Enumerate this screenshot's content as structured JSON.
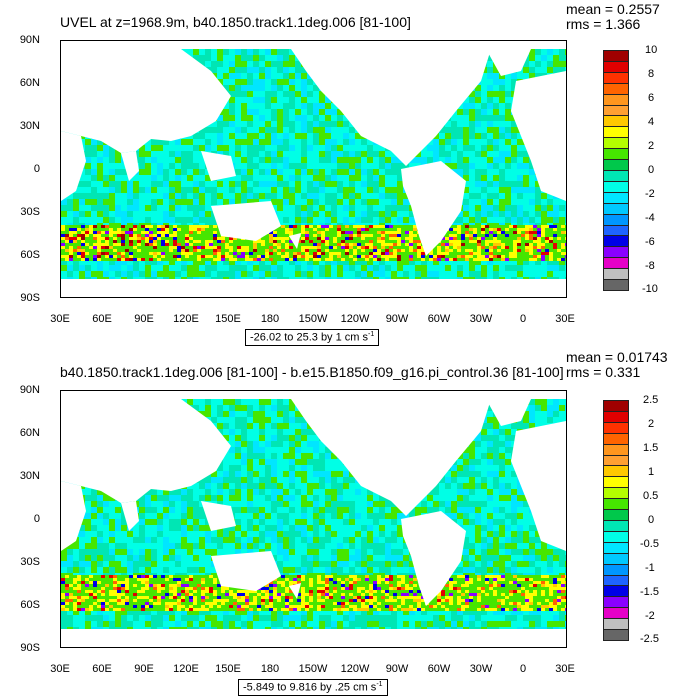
{
  "colors": {
    "palette": [
      "#666666",
      "#bfbfbf",
      "#e600c8",
      "#8a00ff",
      "#0000e6",
      "#1e64ff",
      "#0096ff",
      "#00c8ff",
      "#00e6ff",
      "#00ffe6",
      "#00e6b4",
      "#00c84b",
      "#46e600",
      "#b4ff00",
      "#ffff00",
      "#ffc800",
      "#ffa032",
      "#ff961e",
      "#ff6400",
      "#ff3200",
      "#e10000",
      "#a00000"
    ],
    "land": "#ffffff"
  },
  "panels": [
    {
      "title": "UVEL at z=1968.9m, b40.1850.track1.1deg.006 [81-100]",
      "mean": "mean = 0.2557",
      "rms": "rms = 1.366",
      "yticks": [
        "90N",
        "60N",
        "30N",
        "0",
        "30S",
        "60S",
        "90S"
      ],
      "xticks": [
        "30E",
        "60E",
        "90E",
        "120E",
        "150E",
        "180",
        "150W",
        "120W",
        "90W",
        "60W",
        "30W",
        "0",
        "30E"
      ],
      "colorbar_labels": [
        "10",
        "8",
        "6",
        "4",
        "2",
        "0",
        "-2",
        "-4",
        "-6",
        "-8",
        "-10"
      ],
      "range_text": "-26.02 to 25.3 by 1 cm s",
      "range_sup": "-1"
    },
    {
      "title": "b40.1850.track1.1deg.006 [81-100] - b.e15.B1850.f09_g16.pi_control.36 [81-100]",
      "mean": "mean = 0.01743",
      "rms": "rms = 0.331",
      "yticks": [
        "90N",
        "60N",
        "30N",
        "0",
        "30S",
        "60S",
        "90S"
      ],
      "xticks": [
        "30E",
        "60E",
        "90E",
        "120E",
        "150E",
        "180",
        "150W",
        "120W",
        "90W",
        "60W",
        "30W",
        "0",
        "30E"
      ],
      "colorbar_labels": [
        "2.5",
        "2",
        "1.5",
        "1",
        "0.5",
        "0",
        "-0.5",
        "-1",
        "-1.5",
        "-2",
        "-2.5"
      ],
      "range_text": "-5.849 to 9.816 by .25 cm s",
      "range_sup": "-1"
    }
  ],
  "chart_data": [
    {
      "type": "heatmap",
      "title": "UVEL at z=1968.9m, b40.1850.track1.1deg.006 [81-100]",
      "annotations": [
        "mean = 0.2557",
        "rms = 1.366",
        "-26.02 to 25.3 by 1 cm s-1"
      ],
      "xlim": [
        "30E",
        "30E"
      ],
      "ylim": [
        "90S",
        "90N"
      ],
      "colorbar": {
        "min": -10,
        "max": 10,
        "labels": [
          10,
          8,
          6,
          4,
          2,
          0,
          -2,
          -4,
          -6,
          -8,
          -10
        ]
      }
    },
    {
      "type": "heatmap",
      "title": "b40.1850.track1.1deg.006 [81-100] - b.e15.B1850.f09_g16.pi_control.36 [81-100]",
      "annotations": [
        "mean = 0.01743",
        "rms = 0.331",
        "-5.849 to 9.816 by .25 cm s-1"
      ],
      "xlim": [
        "30E",
        "30E"
      ],
      "ylim": [
        "90S",
        "90N"
      ],
      "colorbar": {
        "min": -2.5,
        "max": 2.5,
        "labels": [
          2.5,
          2,
          1.5,
          1,
          0.5,
          0,
          -0.5,
          -1,
          -1.5,
          -2,
          -2.5
        ]
      }
    }
  ]
}
